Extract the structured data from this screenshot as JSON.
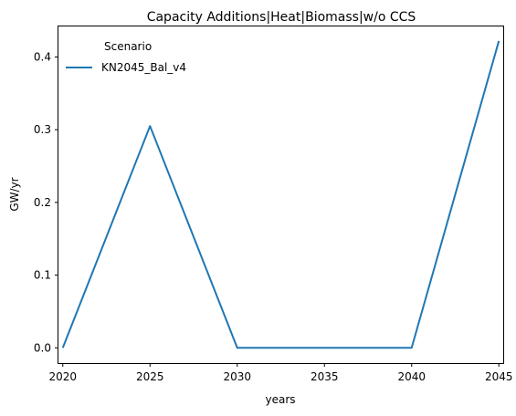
{
  "chart_data": {
    "type": "line",
    "title": "Capacity Additions|Heat|Biomass|w/o CCS",
    "xlabel": "years",
    "ylabel": "GW/yr",
    "x": [
      2020,
      2025,
      2030,
      2035,
      2040,
      2045
    ],
    "xticks": [
      2020,
      2025,
      2030,
      2035,
      2040,
      2045
    ],
    "yticks": [
      0.0,
      0.1,
      0.2,
      0.3,
      0.4
    ],
    "ytick_labels": [
      "0.0",
      "0.1",
      "0.2",
      "0.3",
      "0.4"
    ],
    "xlim": [
      2019.75,
      2045.25
    ],
    "ylim": [
      -0.021,
      0.442
    ],
    "grid": false,
    "legend": {
      "title": "Scenario",
      "placement": "top-left"
    },
    "series": [
      {
        "name": "KN2045_Bal_v4",
        "color": "#1f77b4",
        "x": [
          2020,
          2025,
          2030,
          2040,
          2045
        ],
        "values": [
          0.0,
          0.305,
          0.0,
          0.0,
          0.422
        ]
      }
    ]
  }
}
